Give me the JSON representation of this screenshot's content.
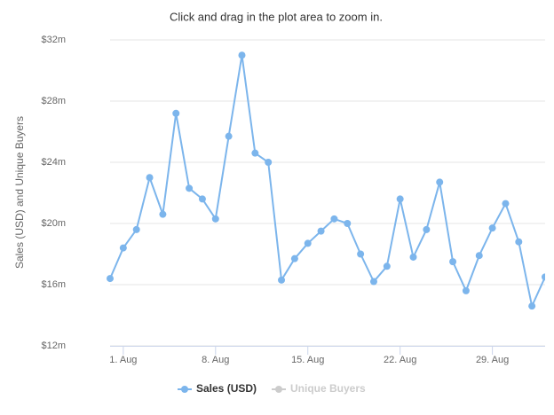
{
  "chart_data": {
    "type": "line",
    "subtitle": "Click and drag in the plot area to zoom in.",
    "y_label": "Sales (USD) and Unique Buyers",
    "x": [
      0,
      1,
      2,
      3,
      4,
      5,
      6,
      7,
      8,
      9,
      10,
      11,
      12,
      13,
      14,
      15,
      16,
      17,
      18,
      19,
      20,
      21,
      22,
      23,
      24,
      25,
      26,
      27,
      28,
      29,
      30,
      31,
      32,
      33
    ],
    "xlim": [
      0,
      33
    ],
    "xticks": [
      {
        "value": 1,
        "label": "1. Aug"
      },
      {
        "value": 8,
        "label": "8. Aug"
      },
      {
        "value": 15,
        "label": "15. Aug"
      },
      {
        "value": 22,
        "label": "22. Aug"
      },
      {
        "value": 29,
        "label": "29. Aug"
      }
    ],
    "ylim": [
      12,
      32
    ],
    "yticks": [
      {
        "value": 12,
        "label": "$12m"
      },
      {
        "value": 16,
        "label": "$16m"
      },
      {
        "value": 20,
        "label": "$20m"
      },
      {
        "value": 24,
        "label": "$24m"
      },
      {
        "value": 28,
        "label": "$28m"
      },
      {
        "value": 32,
        "label": "$32m"
      }
    ],
    "grid": true,
    "series": [
      {
        "name": "Sales (USD)",
        "color": "#7cb5ec",
        "visible": true,
        "values": [
          16.4,
          18.4,
          19.6,
          23.0,
          20.6,
          27.2,
          22.3,
          21.6,
          20.3,
          25.7,
          31.0,
          24.6,
          24.0,
          16.3,
          17.7,
          18.7,
          19.5,
          20.3,
          20.0,
          18.0,
          16.2,
          17.2,
          21.6,
          17.8,
          19.6,
          22.7,
          17.5,
          15.6,
          17.9,
          19.7,
          21.3,
          18.8,
          14.6,
          16.5
        ]
      },
      {
        "name": "Unique Buyers",
        "color": "#cccccc",
        "visible": false
      }
    ]
  }
}
